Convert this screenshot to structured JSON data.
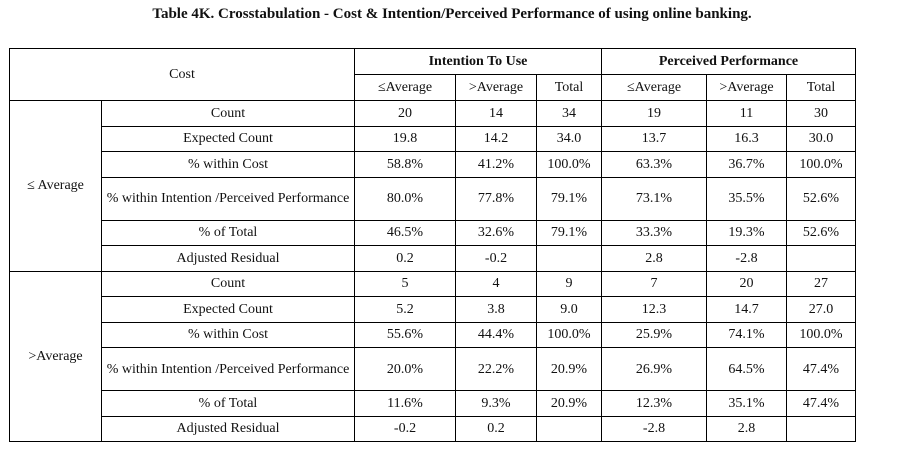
{
  "title": "Table 4K. Crosstabulation - Cost & Intention/Perceived Performance of using online banking.",
  "header": {
    "cost": "Cost",
    "group1": "Intention To Use",
    "group2": "Perceived Performance",
    "cols": [
      "≤Average",
      ">Average",
      "Total",
      "≤Average",
      ">Average",
      "Total"
    ]
  },
  "blocks": [
    {
      "label": "≤ Average",
      "rows": [
        {
          "label": "Count",
          "values": [
            "20",
            "14",
            "34",
            "19",
            "11",
            "30"
          ]
        },
        {
          "label": "Expected Count",
          "values": [
            "19.8",
            "14.2",
            "34.0",
            "13.7",
            "16.3",
            "30.0"
          ]
        },
        {
          "label": "% within Cost",
          "values": [
            "58.8%",
            "41.2%",
            "100.0%",
            "63.3%",
            "36.7%",
            "100.0%"
          ]
        },
        {
          "label": "% within Intention /Perceived Performance",
          "values": [
            "80.0%",
            "77.8%",
            "79.1%",
            "73.1%",
            "35.5%",
            "52.6%"
          ]
        },
        {
          "label": "% of Total",
          "values": [
            "46.5%",
            "32.6%",
            "79.1%",
            "33.3%",
            "19.3%",
            "52.6%"
          ]
        },
        {
          "label": "Adjusted Residual",
          "values": [
            "0.2",
            "-0.2",
            "",
            "2.8",
            "-2.8",
            ""
          ]
        }
      ]
    },
    {
      "label": ">Average",
      "rows": [
        {
          "label": "Count",
          "values": [
            "5",
            "4",
            "9",
            "7",
            "20",
            "27"
          ]
        },
        {
          "label": "Expected Count",
          "values": [
            "5.2",
            "3.8",
            "9.0",
            "12.3",
            "14.7",
            "27.0"
          ]
        },
        {
          "label": "% within Cost",
          "values": [
            "55.6%",
            "44.4%",
            "100.0%",
            "25.9%",
            "74.1%",
            "100.0%"
          ]
        },
        {
          "label": "% within Intention /Perceived Performance",
          "values": [
            "20.0%",
            "22.2%",
            "20.9%",
            "26.9%",
            "64.5%",
            "47.4%"
          ]
        },
        {
          "label": "% of Total",
          "values": [
            "11.6%",
            "9.3%",
            "20.9%",
            "12.3%",
            "35.1%",
            "47.4%"
          ]
        },
        {
          "label": "Adjusted Residual",
          "values": [
            "-0.2",
            "0.2",
            "",
            "-2.8",
            "2.8",
            ""
          ]
        }
      ]
    }
  ]
}
